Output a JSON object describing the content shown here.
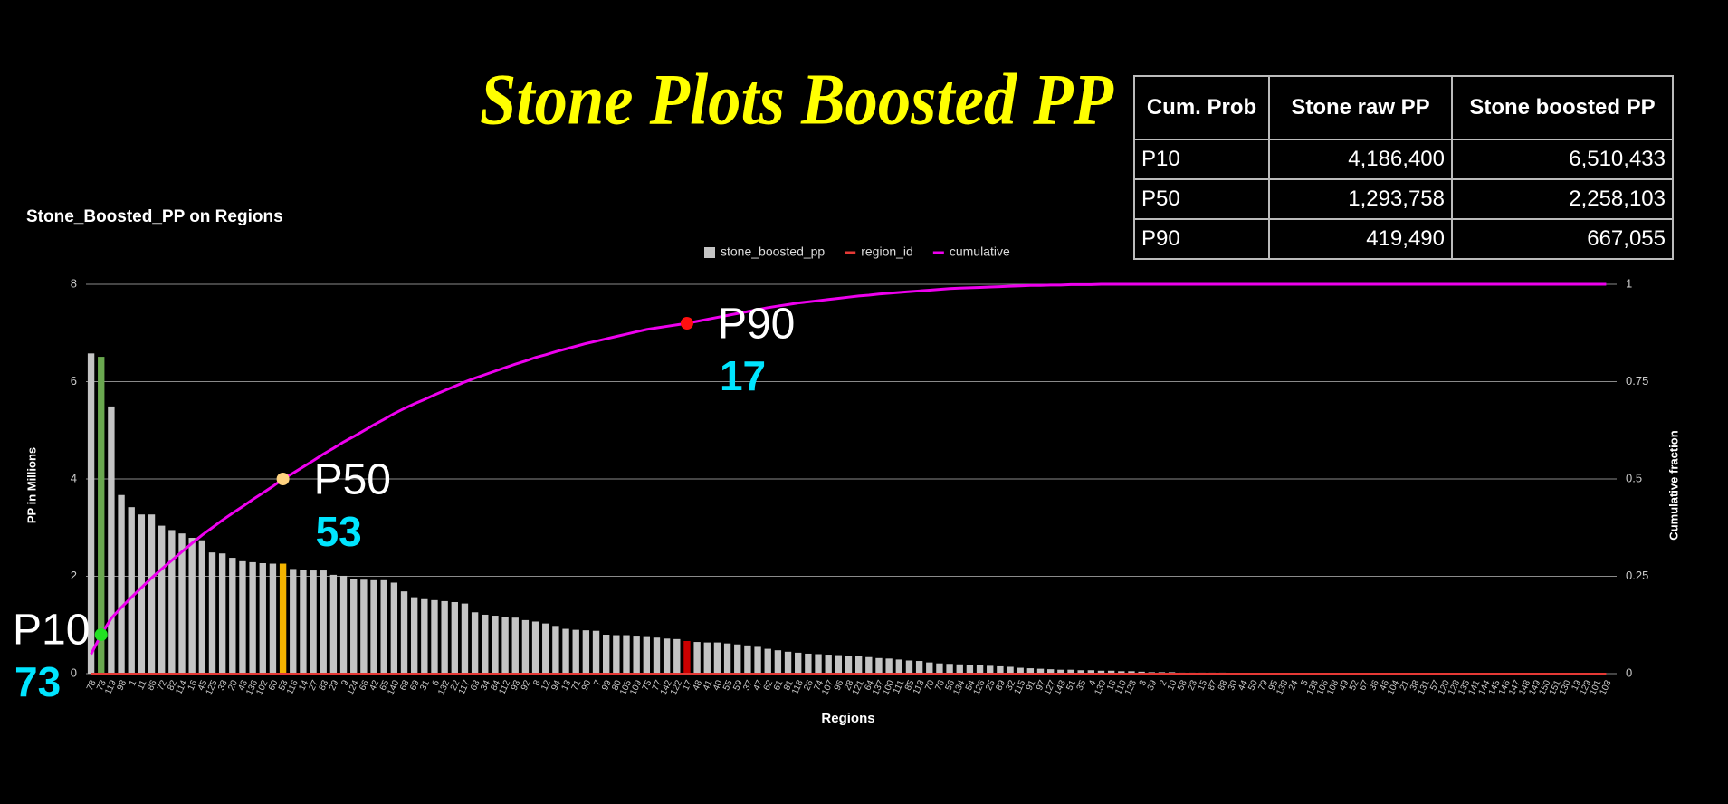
{
  "page_title": "Stone Plots Boosted PP",
  "table": {
    "header": [
      "Cum. Prob",
      "Stone raw PP",
      "Stone boosted PP"
    ],
    "rows": [
      [
        "P10",
        "4,186,400",
        "6,510,433"
      ],
      [
        "P50",
        "1,293,758",
        "2,258,103"
      ],
      [
        "P90",
        "419,490",
        "667,055"
      ]
    ]
  },
  "chart_data": {
    "type": "combo",
    "title": "Stone_Boosted_PP on Regions",
    "x_label": "Regions",
    "y_label": "PP in Millions",
    "y2_label": "Cumulative fraction",
    "categories": [
      "78",
      "73",
      "119",
      "98",
      "1",
      "11",
      "86",
      "72",
      "82",
      "114",
      "16",
      "45",
      "125",
      "33",
      "20",
      "43",
      "136",
      "102",
      "60",
      "53",
      "116",
      "14",
      "27",
      "83",
      "29",
      "9",
      "124",
      "66",
      "42",
      "65",
      "140",
      "68",
      "69",
      "31",
      "6",
      "132",
      "22",
      "117",
      "63",
      "34",
      "84",
      "112",
      "93",
      "92",
      "8",
      "12",
      "94",
      "13",
      "71",
      "90",
      "7",
      "99",
      "80",
      "105",
      "109",
      "75",
      "77",
      "142",
      "122",
      "17",
      "48",
      "41",
      "40",
      "55",
      "59",
      "37",
      "47",
      "62",
      "61",
      "81",
      "118",
      "26",
      "74",
      "107",
      "96",
      "28",
      "121",
      "64",
      "137",
      "100",
      "111",
      "85",
      "113",
      "70",
      "76",
      "56",
      "134",
      "54",
      "126",
      "25",
      "89",
      "32",
      "115",
      "91",
      "97",
      "127",
      "143",
      "51",
      "35",
      "4",
      "139",
      "18",
      "110",
      "123",
      "3",
      "39",
      "2",
      "10",
      "58",
      "23",
      "15",
      "87",
      "88",
      "30",
      "44",
      "50",
      "79",
      "95",
      "138",
      "24",
      "5",
      "133",
      "106",
      "108",
      "49",
      "52",
      "67",
      "36",
      "46",
      "104",
      "21",
      "38",
      "131",
      "57",
      "120",
      "128",
      "135",
      "141",
      "144",
      "145",
      "146",
      "147",
      "148",
      "149",
      "150",
      "151",
      "130",
      "19",
      "129",
      "101",
      "103"
    ],
    "series": [
      {
        "name": "stone_boosted_pp",
        "type": "bar",
        "color": "#c4c4c4",
        "values": [
          6.58,
          6.51,
          5.49,
          3.67,
          3.42,
          3.27,
          3.27,
          3.04,
          2.95,
          2.88,
          2.79,
          2.74,
          2.49,
          2.47,
          2.38,
          2.31,
          2.29,
          2.27,
          2.26,
          2.26,
          2.15,
          2.13,
          2.12,
          2.12,
          2.03,
          2.01,
          1.94,
          1.93,
          1.92,
          1.92,
          1.87,
          1.69,
          1.57,
          1.53,
          1.51,
          1.49,
          1.47,
          1.44,
          1.26,
          1.21,
          1.19,
          1.17,
          1.15,
          1.1,
          1.07,
          1.03,
          0.98,
          0.92,
          0.9,
          0.89,
          0.88,
          0.8,
          0.79,
          0.79,
          0.78,
          0.77,
          0.74,
          0.72,
          0.71,
          0.67,
          0.65,
          0.64,
          0.64,
          0.62,
          0.6,
          0.58,
          0.55,
          0.51,
          0.48,
          0.45,
          0.43,
          0.41,
          0.4,
          0.39,
          0.38,
          0.37,
          0.36,
          0.34,
          0.32,
          0.31,
          0.29,
          0.27,
          0.26,
          0.23,
          0.21,
          0.2,
          0.19,
          0.18,
          0.17,
          0.16,
          0.15,
          0.14,
          0.12,
          0.11,
          0.1,
          0.09,
          0.08,
          0.08,
          0.07,
          0.07,
          0.06,
          0.06,
          0.05,
          0.05,
          0.04,
          0.03,
          0.03,
          0.03,
          0.02,
          0.02,
          0.02,
          0.02,
          0.02,
          0.01,
          0.01,
          0.01,
          0.01,
          0.01,
          0.01,
          0.01,
          0,
          0,
          0,
          0,
          0,
          0,
          0,
          0,
          0,
          0,
          0,
          0,
          0,
          0,
          0,
          0,
          0,
          0,
          0,
          0,
          0,
          0,
          0,
          0,
          0,
          0,
          0,
          0,
          0,
          0,
          0
        ]
      },
      {
        "name": "region_id",
        "type": "line",
        "color": "#e53935",
        "values": [
          0,
          0,
          0,
          0,
          0,
          0,
          0,
          0,
          0,
          0,
          0,
          0,
          0,
          0,
          0,
          0,
          0,
          0,
          0,
          0,
          0,
          0,
          0,
          0,
          0,
          0,
          0,
          0,
          0,
          0,
          0,
          0,
          0,
          0,
          0,
          0,
          0,
          0,
          0,
          0,
          0,
          0,
          0,
          0,
          0,
          0,
          0,
          0,
          0,
          0,
          0,
          0,
          0,
          0,
          0,
          0,
          0,
          0,
          0,
          0,
          0,
          0,
          0,
          0,
          0,
          0,
          0,
          0,
          0,
          0,
          0,
          0,
          0,
          0,
          0,
          0,
          0,
          0,
          0,
          0,
          0,
          0,
          0,
          0,
          0,
          0,
          0,
          0,
          0,
          0,
          0,
          0,
          0,
          0,
          0,
          0,
          0,
          0,
          0,
          0,
          0,
          0,
          0,
          0,
          0,
          0,
          0,
          0,
          0,
          0,
          0,
          0,
          0,
          0,
          0,
          0,
          0,
          0,
          0,
          0,
          0,
          0,
          0,
          0,
          0,
          0,
          0,
          0,
          0,
          0,
          0,
          0,
          0,
          0,
          0,
          0,
          0,
          0,
          0,
          0,
          0,
          0,
          0,
          0,
          0,
          0,
          0,
          0,
          0,
          0,
          0
        ]
      },
      {
        "name": "cumulative",
        "type": "line",
        "axis": "y2",
        "color": "#ee00ee",
        "values": [
          0.05,
          0.1,
          0.142,
          0.17,
          0.196,
          0.221,
          0.246,
          0.269,
          0.291,
          0.313,
          0.335,
          0.356,
          0.375,
          0.394,
          0.412,
          0.429,
          0.447,
          0.464,
          0.481,
          0.5,
          0.515,
          0.531,
          0.547,
          0.564,
          0.579,
          0.595,
          0.609,
          0.624,
          0.639,
          0.653,
          0.668,
          0.681,
          0.693,
          0.704,
          0.716,
          0.727,
          0.738,
          0.749,
          0.759,
          0.768,
          0.777,
          0.786,
          0.795,
          0.803,
          0.812,
          0.819,
          0.827,
          0.834,
          0.841,
          0.848,
          0.854,
          0.86,
          0.866,
          0.872,
          0.878,
          0.884,
          0.888,
          0.892,
          0.896,
          0.9,
          0.905,
          0.91,
          0.915,
          0.92,
          0.925,
          0.93,
          0.935,
          0.94,
          0.944,
          0.948,
          0.952,
          0.955,
          0.958,
          0.961,
          0.964,
          0.967,
          0.97,
          0.972,
          0.975,
          0.977,
          0.979,
          0.981,
          0.983,
          0.985,
          0.987,
          0.989,
          0.99,
          0.991,
          0.992,
          0.993,
          0.994,
          0.995,
          0.996,
          0.997,
          0.997,
          0.998,
          0.998,
          0.999,
          0.999,
          0.999,
          1,
          1,
          1,
          1,
          1,
          1,
          1,
          1,
          1,
          1,
          1,
          1,
          1,
          1,
          1,
          1,
          1,
          1,
          1,
          1,
          1,
          1,
          1,
          1,
          1,
          1,
          1,
          1,
          1,
          1,
          1,
          1,
          1,
          1,
          1,
          1,
          1,
          1,
          1,
          1,
          1,
          1,
          1,
          1,
          1,
          1,
          1,
          1,
          1,
          1,
          1
        ]
      }
    ],
    "annotations": [
      {
        "label": "P10",
        "region": "73",
        "dot_color": "#22e022",
        "bar_color": "#6aa84f"
      },
      {
        "label": "P50",
        "region": "53",
        "dot_color": "#ffd27f",
        "bar_color": "#f4b400"
      },
      {
        "label": "P90",
        "region": "17",
        "dot_color": "#ff1010",
        "bar_color": "#cc0000"
      }
    ],
    "ylim": [
      0,
      8
    ],
    "yticks": [
      0,
      2,
      4,
      6,
      8
    ],
    "y2lim": [
      0,
      1
    ],
    "y2ticks": [
      0,
      0.25,
      0.5,
      0.75,
      1
    ],
    "grid": true,
    "legend": "top"
  }
}
